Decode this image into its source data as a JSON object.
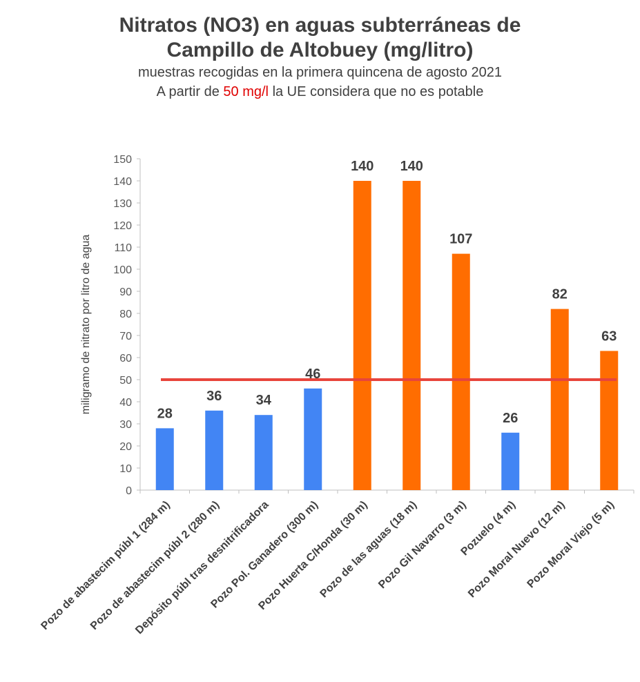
{
  "title_line1": "Nitratos (NO3) en aguas subterráneas de",
  "title_line2": "Campillo de Altobuey (mg/litro)",
  "subtitle_line1": "muestras recogidas en la primera quincena de agosto 2021",
  "subtitle_line2_prefix": "A partir de",
  "subtitle_line2_highlight": "50 mg/l",
  "subtitle_line2_suffix": "la UE considera que no es potable",
  "chart_data": {
    "type": "bar",
    "ylabel": "miligramo de nitrato por litro de agua",
    "ylim": [
      0,
      150
    ],
    "ytick_step": 10,
    "grid": false,
    "threshold": 50,
    "threshold_color": "#e8453c",
    "color_below": "#4285f4",
    "color_above": "#ff6d01",
    "categories": [
      "Pozo de abastecim públ 1 (284 m)",
      "Pozo de abastecim públ 2 (280 m)",
      "Depósito públ tras desnitrificadora",
      "Pozo Pol. Ganadero (300 m)",
      "Pozo Huerta C/Honda (30 m)",
      "Pozo de las aguas (18 m)",
      "Pozo Gil Navarro (3 m)",
      "Pozuelo (4 m)",
      "Pozo Moral Nuevo (12 m)",
      "Pozo Moral Viejo (5 m)"
    ],
    "values": [
      28,
      36,
      34,
      46,
      140,
      140,
      107,
      26,
      82,
      63
    ],
    "data_labels": [
      "28",
      "36",
      "34",
      "46",
      "140",
      "140",
      "107",
      "26",
      "82",
      "63"
    ]
  }
}
